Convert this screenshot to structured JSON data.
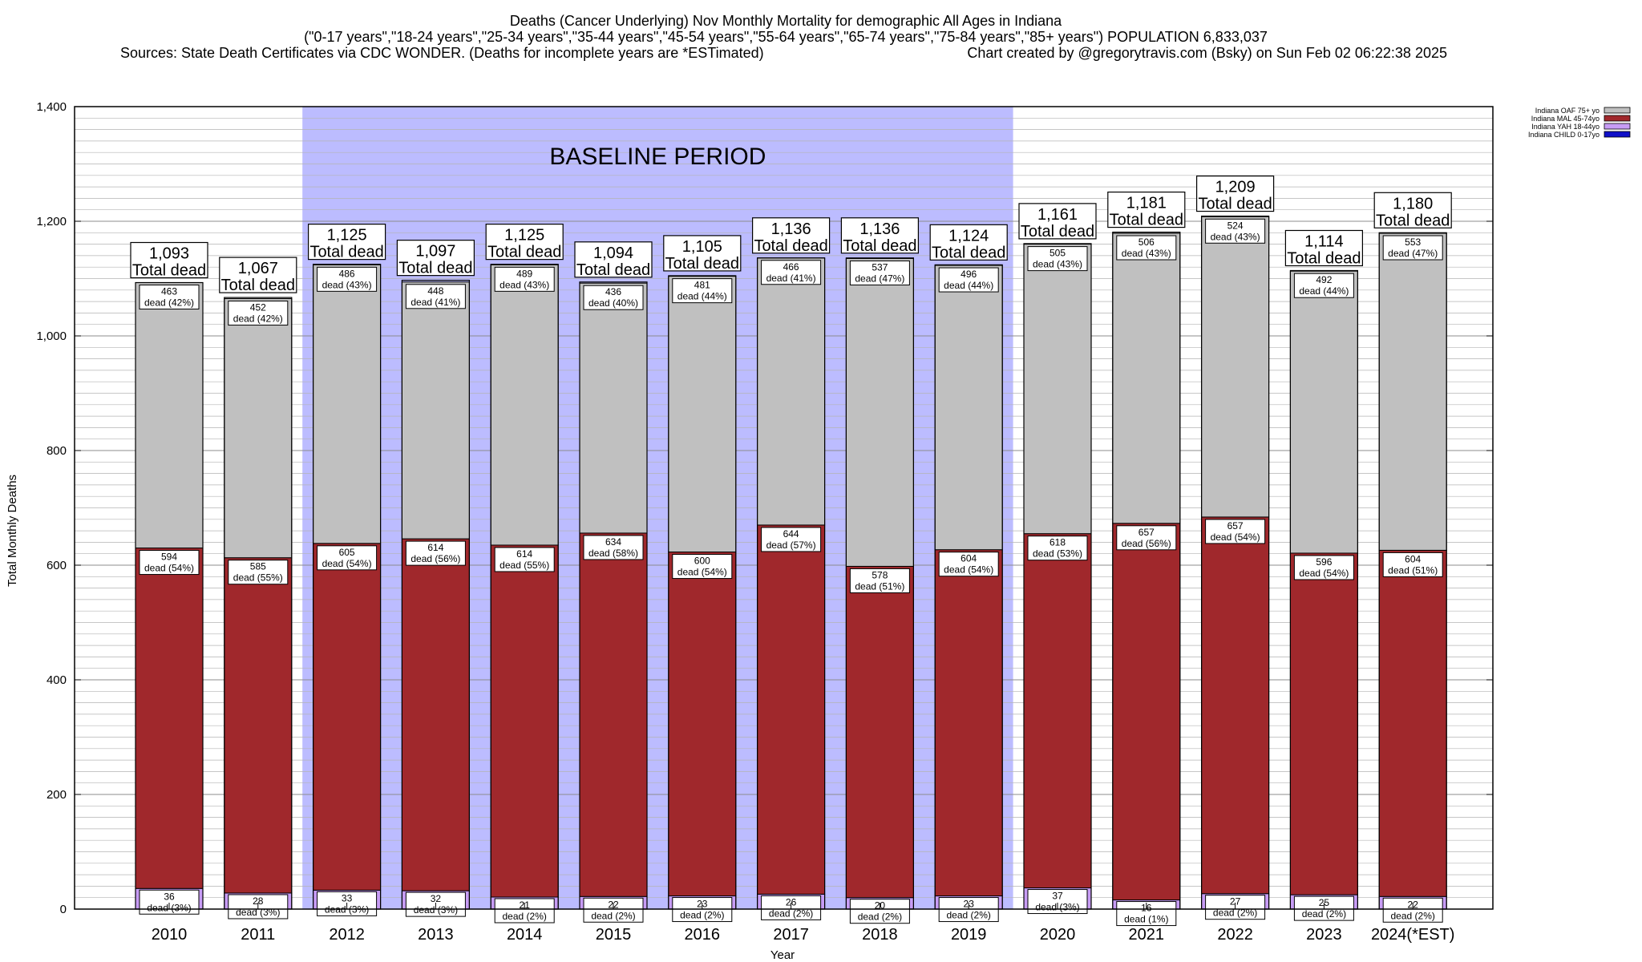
{
  "header": {
    "title": "Deaths (Cancer Underlying) Nov Monthly Mortality for demographic All Ages in Indiana",
    "subtitle": "(\"0-17 years\",\"18-24 years\",\"25-34 years\",\"35-44 years\",\"45-54 years\",\"55-64 years\",\"65-74 years\",\"75-84 years\",\"85+ years\") POPULATION 6,833,037",
    "sources": "Sources: State Death Certificates via CDC WONDER. (Deaths for incomplete years are *ESTimated)",
    "credit": "Chart created by @gregorytravis.com (Bsky) on Sun Feb 02 06:22:38 2025"
  },
  "colors": {
    "oaf": "#c0c0c0",
    "mal": "#a0282c",
    "yah": "#c79cf5",
    "child": "#1010c8",
    "baseline": "#bcbcff"
  },
  "chart_data": {
    "type": "bar",
    "stacked": true,
    "title": "Deaths (Cancer Underlying) Nov Monthly Mortality for demographic All Ages in Indiana",
    "xlabel": "Year",
    "ylabel": "Total Monthly Deaths",
    "ylim": [
      0,
      1400
    ],
    "yticks": [
      0,
      200,
      400,
      600,
      800,
      1000,
      1200,
      1400
    ],
    "ytick_labels": [
      "0",
      "200",
      "400",
      "600",
      "800",
      "1,000",
      "1,200",
      "1,400"
    ],
    "grid": true,
    "legend_position": "top-right",
    "baseline_period": {
      "label": "BASELINE PERIOD",
      "from": "2012",
      "to": "2019"
    },
    "categories": [
      "2010",
      "2011",
      "2012",
      "2013",
      "2014",
      "2015",
      "2016",
      "2017",
      "2018",
      "2019",
      "2020",
      "2021",
      "2022",
      "2023",
      "2024(*EST)"
    ],
    "series": [
      {
        "name": "Indiana CHILD 0-17yo",
        "color": "#1010c8",
        "values": [
          0,
          0,
          0,
          0,
          0,
          0,
          0,
          0,
          0,
          0,
          0,
          0,
          0,
          0,
          0
        ]
      },
      {
        "name": "Indiana YAH 18-44yo",
        "color": "#c79cf5",
        "values": [
          36,
          28,
          33,
          32,
          21,
          22,
          23,
          26,
          20,
          23,
          37,
          16,
          27,
          25,
          22
        ],
        "labels": [
          "36\ndead (3%)",
          "28\ndead (3%)",
          "33\ndead (3%)",
          "32\ndead (3%)",
          "21\ndead (2%)",
          "22\ndead (2%)",
          "23\ndead (2%)",
          "26\ndead (2%)",
          "20\ndead (2%)",
          "23\ndead (2%)",
          "37\ndead (3%)",
          "16\ndead (1%)",
          "27\ndead (2%)",
          "25\ndead (2%)",
          "22\ndead (2%)"
        ]
      },
      {
        "name": "Indiana MAL 45-74yo",
        "color": "#a0282c",
        "values": [
          594,
          585,
          605,
          614,
          614,
          634,
          600,
          644,
          578,
          604,
          618,
          657,
          657,
          596,
          604
        ],
        "labels": [
          "594\ndead (54%)",
          "585\ndead (55%)",
          "605\ndead (54%)",
          "614\ndead (56%)",
          "614\ndead (55%)",
          "634\ndead (58%)",
          "600\ndead (54%)",
          "644\ndead (57%)",
          "578\ndead (51%)",
          "604\ndead (54%)",
          "618\ndead (53%)",
          "657\ndead (56%)",
          "657\ndead (54%)",
          "596\ndead (54%)",
          "604\ndead (51%)"
        ]
      },
      {
        "name": "Indiana OAF 75+ yo",
        "color": "#c0c0c0",
        "values": [
          463,
          452,
          486,
          448,
          489,
          436,
          481,
          466,
          537,
          496,
          505,
          506,
          524,
          492,
          553
        ],
        "labels": [
          "463\ndead (42%)",
          "452\ndead (42%)",
          "486\ndead (43%)",
          "448\ndead (41%)",
          "489\ndead (43%)",
          "436\ndead (40%)",
          "481\ndead (44%)",
          "466\ndead (41%)",
          "537\ndead (47%)",
          "496\ndead (44%)",
          "505\ndead (43%)",
          "506\ndead (43%)",
          "524\ndead (43%)",
          "492\ndead (44%)",
          "553\ndead (47%)"
        ]
      }
    ],
    "totals": [
      1093,
      1067,
      1125,
      1097,
      1125,
      1094,
      1105,
      1136,
      1136,
      1124,
      1161,
      1181,
      1209,
      1114,
      1180
    ],
    "total_labels": [
      "1,093\nTotal dead",
      "1,067\nTotal dead",
      "1,125\nTotal dead",
      "1,097\nTotal dead",
      "1,125\nTotal dead",
      "1,094\nTotal dead",
      "1,105\nTotal dead",
      "1,136\nTotal dead",
      "1,136\nTotal dead",
      "1,124\nTotal dead",
      "1,161\nTotal dead",
      "1,181\nTotal dead",
      "1,209\nTotal dead",
      "1,114\nTotal dead",
      "1,180\nTotal dead"
    ]
  }
}
